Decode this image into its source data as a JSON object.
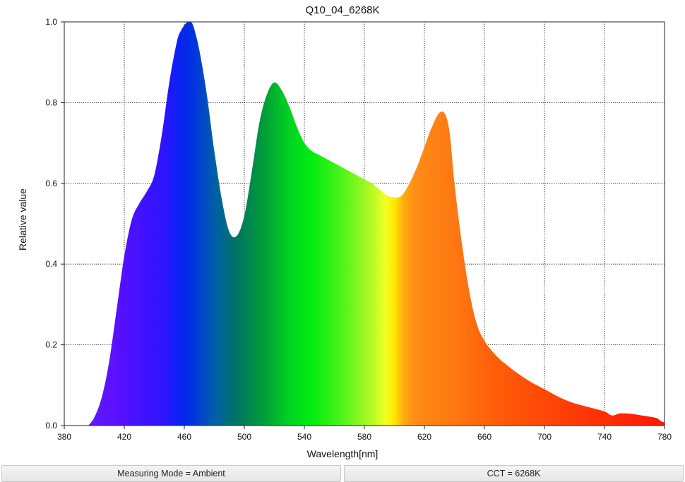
{
  "chart_data": {
    "type": "area",
    "title": "Q10_04_6268K",
    "xlabel": "Wavelength[nm]",
    "ylabel": "Relative value",
    "xlim": [
      380,
      780
    ],
    "ylim": [
      0,
      1.0
    ],
    "x_ticks": [
      380,
      420,
      460,
      500,
      540,
      580,
      620,
      660,
      700,
      740,
      780
    ],
    "y_ticks": [
      0.0,
      0.2,
      0.4,
      0.6,
      0.8,
      1.0
    ],
    "x_tick_labels": [
      "380",
      "420",
      "460",
      "500",
      "540",
      "580",
      "620",
      "660",
      "700",
      "740",
      "780"
    ],
    "y_tick_labels": [
      "0.0",
      "0.2",
      "0.4",
      "0.6",
      "0.8",
      "1.0"
    ],
    "grid": true,
    "fill": "visible-spectrum-gradient",
    "points": {
      "x": [
        396,
        400,
        405,
        410,
        415,
        420,
        425,
        430,
        435,
        440,
        445,
        450,
        455,
        458,
        462,
        464,
        466,
        470,
        475,
        480,
        485,
        490,
        495,
        500,
        505,
        510,
        515,
        520,
        525,
        530,
        535,
        540,
        545,
        550,
        555,
        560,
        565,
        570,
        575,
        580,
        585,
        590,
        595,
        600,
        605,
        610,
        615,
        620,
        625,
        630,
        634,
        637,
        640,
        645,
        650,
        655,
        660,
        665,
        670,
        675,
        680,
        690,
        700,
        710,
        720,
        730,
        740,
        745,
        750,
        755,
        760,
        765,
        770,
        775,
        778,
        780
      ],
      "y": [
        0.0,
        0.02,
        0.07,
        0.16,
        0.29,
        0.42,
        0.51,
        0.55,
        0.58,
        0.62,
        0.72,
        0.85,
        0.95,
        0.98,
        1.0,
        1.0,
        0.99,
        0.93,
        0.82,
        0.68,
        0.56,
        0.48,
        0.47,
        0.52,
        0.63,
        0.75,
        0.82,
        0.85,
        0.83,
        0.79,
        0.74,
        0.7,
        0.68,
        0.67,
        0.66,
        0.65,
        0.64,
        0.63,
        0.62,
        0.61,
        0.6,
        0.585,
        0.57,
        0.565,
        0.57,
        0.6,
        0.64,
        0.69,
        0.74,
        0.775,
        0.77,
        0.72,
        0.6,
        0.45,
        0.33,
        0.25,
        0.21,
        0.185,
        0.165,
        0.15,
        0.135,
        0.11,
        0.09,
        0.07,
        0.055,
        0.045,
        0.035,
        0.025,
        0.03,
        0.03,
        0.028,
        0.025,
        0.022,
        0.018,
        0.01,
        0.008
      ]
    }
  },
  "status_bar": {
    "left_text": "Measuring Mode = Ambient",
    "right_text": "CCT = 6268K"
  }
}
